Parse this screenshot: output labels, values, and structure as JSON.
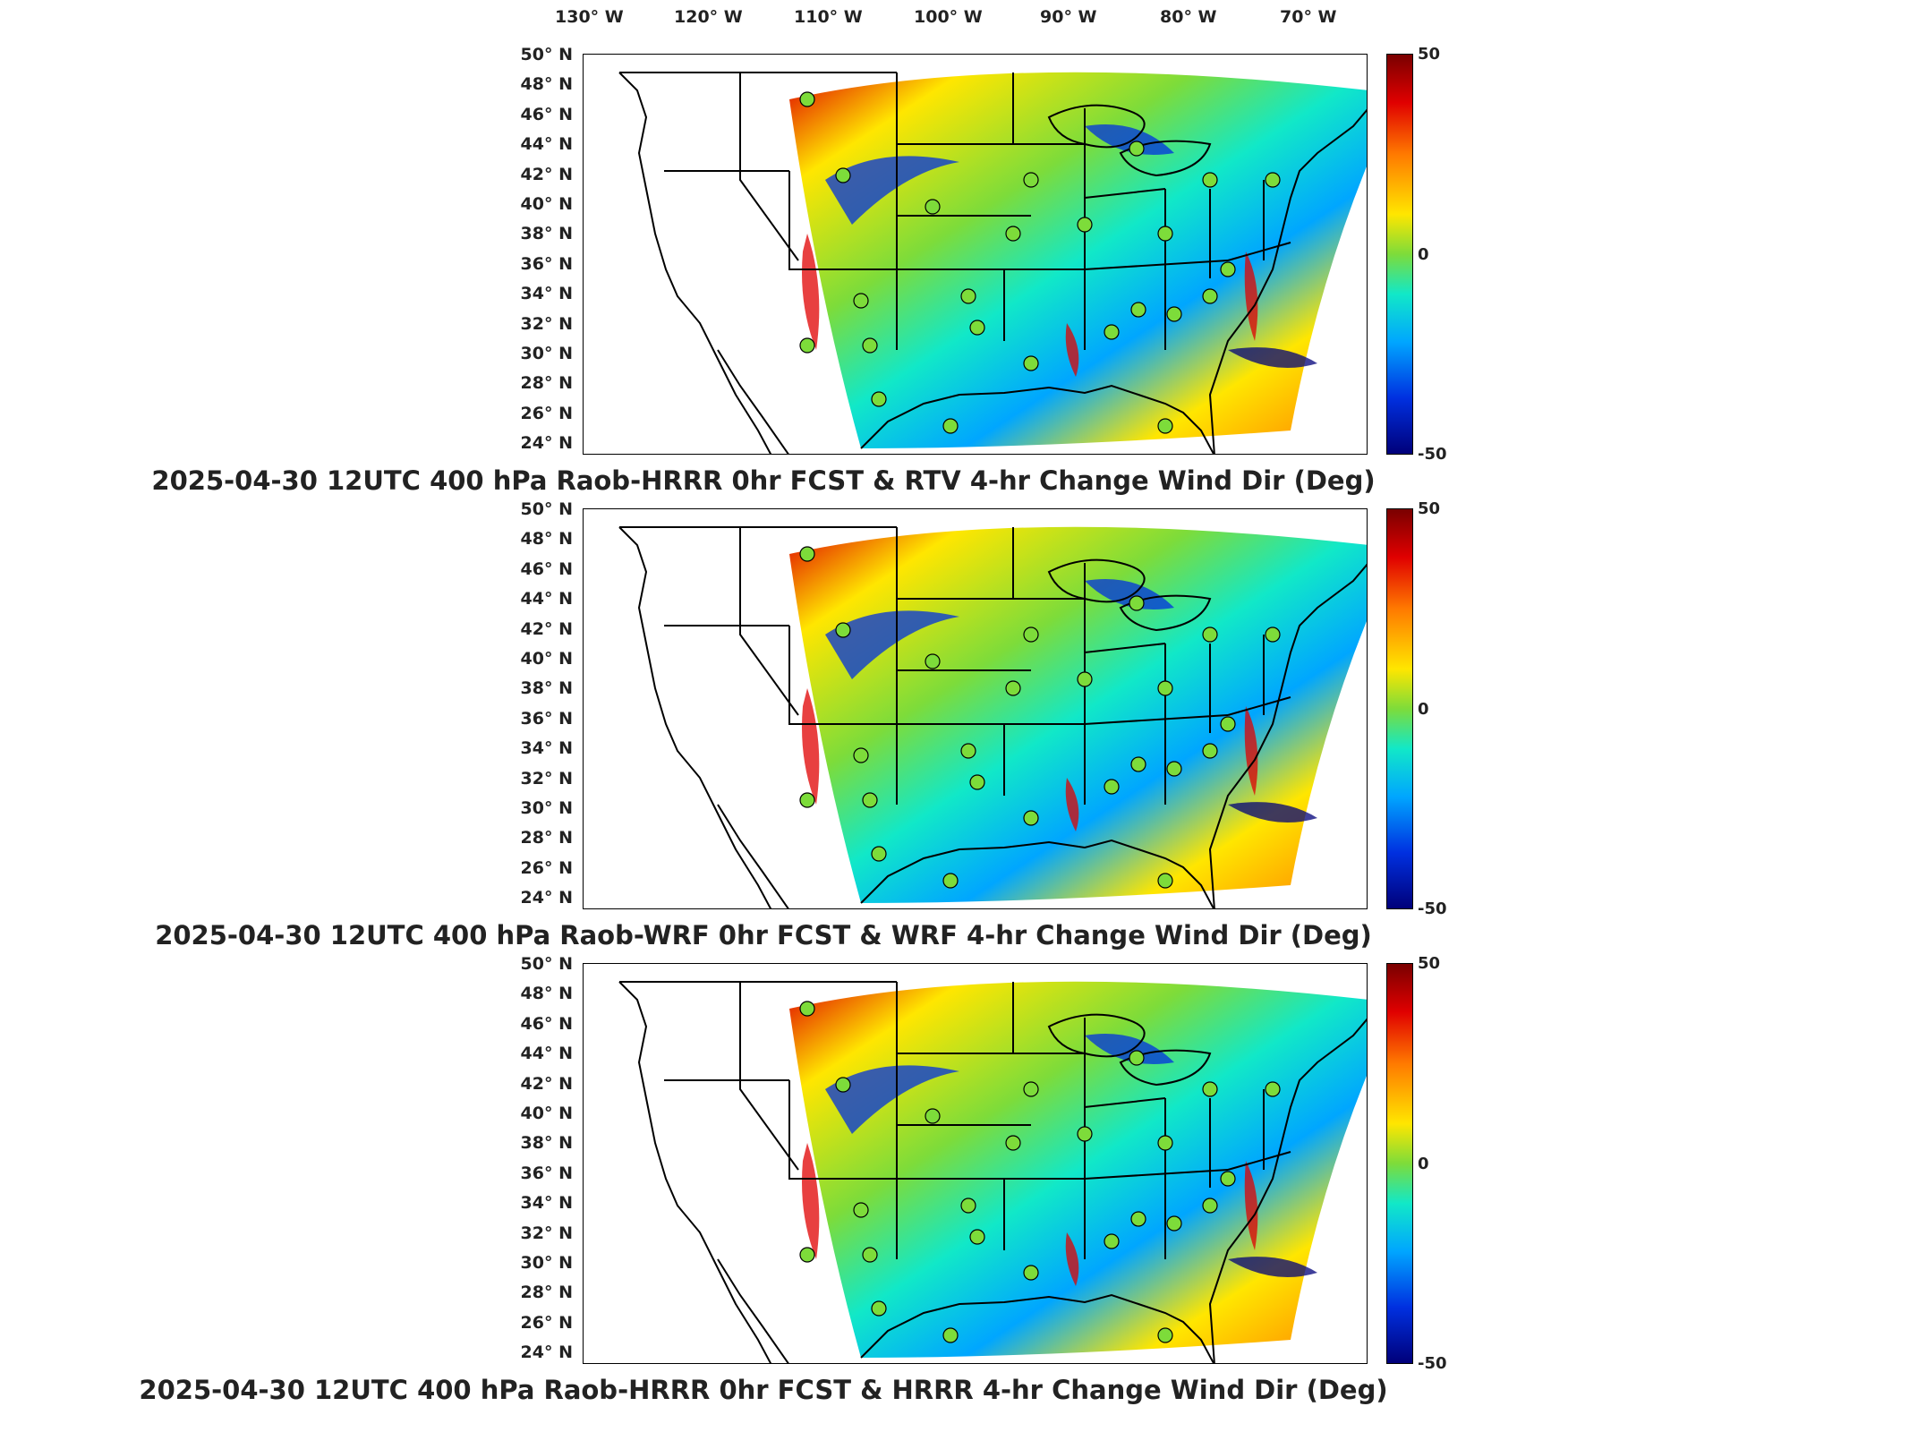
{
  "longitude_labels": [
    "130° W",
    "120° W",
    "110° W",
    "100° W",
    "90° W",
    "80° W",
    "70° W"
  ],
  "latitude_labels": [
    "50° N",
    "48° N",
    "46° N",
    "44° N",
    "42° N",
    "40° N",
    "38° N",
    "36° N",
    "34° N",
    "32° N",
    "30° N",
    "28° N",
    "26° N",
    "24° N"
  ],
  "colorbar": {
    "max_label": "50",
    "mid_label": "0",
    "min_label": "-50",
    "colors": [
      "#7a0000",
      "#e00000",
      "#ff7a00",
      "#ffe600",
      "#7ddc3a",
      "#11e8c8",
      "#00a6ff",
      "#0030e0",
      "#00007a"
    ]
  },
  "panels": [
    {
      "title": "2025-04-30 12UTC 400 hPa Raob-HRRR 0hr FCST & RTV 4-hr Change Wind Dir (Deg)"
    },
    {
      "title": "2025-04-30 12UTC 400 hPa Raob-WRF 0hr FCST & WRF 4-hr Change Wind Dir (Deg)"
    },
    {
      "title": "2025-04-30 12UTC 400 hPa Raob-HRRR 0hr FCST & HRRR 4-hr Change Wind Dir (Deg)"
    }
  ]
}
